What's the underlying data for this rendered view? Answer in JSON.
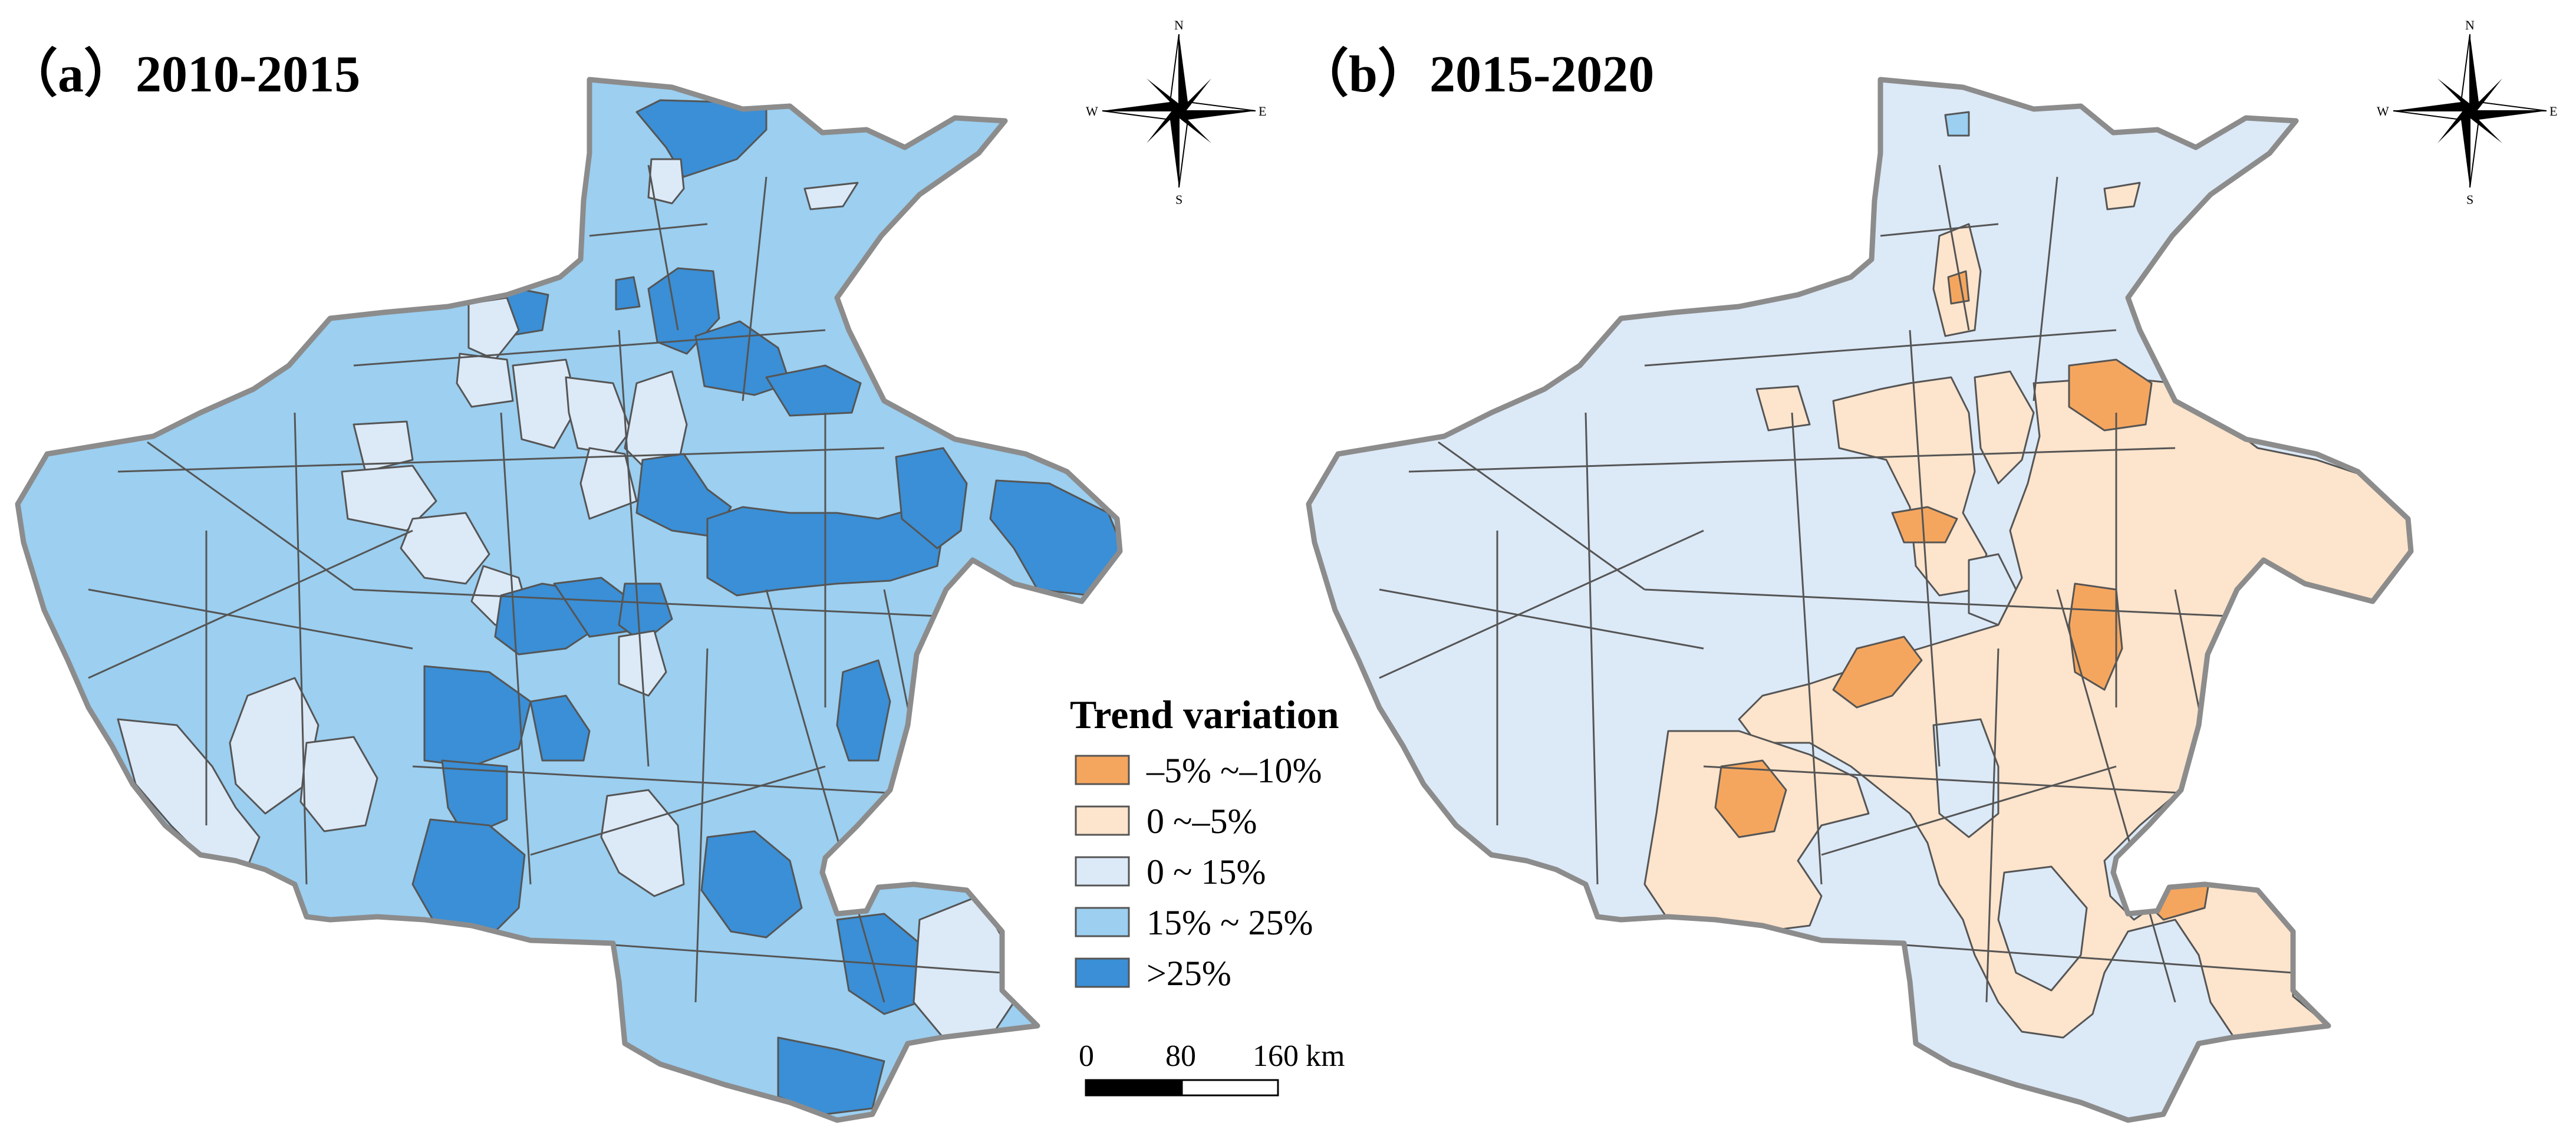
{
  "panels": [
    {
      "title": "（a）2010-2015"
    },
    {
      "title": "（b）2015-2020"
    }
  ],
  "compass": {
    "n": "N",
    "s": "S",
    "e": "E",
    "w": "W"
  },
  "legend": {
    "title": "Trend variation",
    "items": [
      {
        "label": "–5% ~–10%",
        "color": "#f5a65e"
      },
      {
        "label": "0 ~–5%",
        "color": "#fde4cc"
      },
      {
        "label": "0 ~ 15%",
        "color": "#dce9f7"
      },
      {
        "label": "15% ~ 25%",
        "color": "#9ccff0"
      },
      {
        "label": ">25%",
        "color": "#3a8fd6"
      }
    ]
  },
  "scale_bar": {
    "ticks": [
      "0",
      "80",
      "160"
    ],
    "unit": "km"
  }
}
